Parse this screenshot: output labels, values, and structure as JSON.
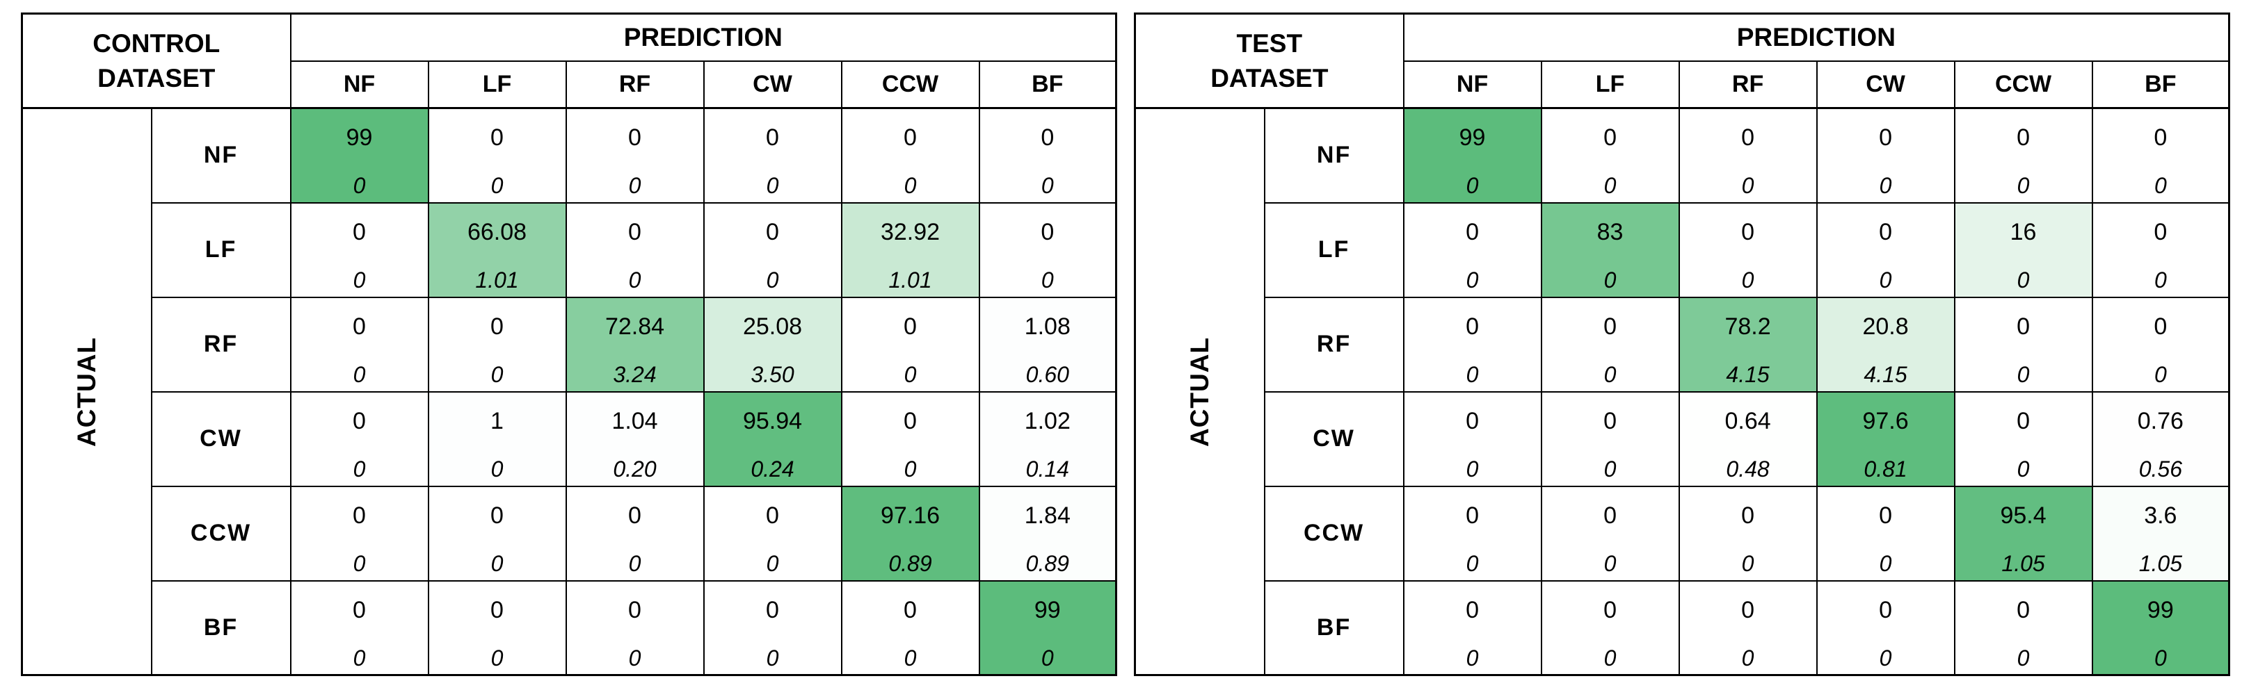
{
  "page": {
    "background": "#FFFFFF",
    "border_color": "#000000"
  },
  "heat": {
    "zero_color": "#FFFFFF",
    "max_color": "#5CBC7C",
    "max_value": 99
  },
  "tables": [
    {
      "dataset_label": "CONTROL DATASET",
      "prediction_label": "PREDICTION",
      "actual_label": "ACTUAL",
      "col_headers": [
        "NF",
        "LF",
        "RF",
        "CW",
        "CCW",
        "BF"
      ],
      "rows": [
        {
          "label": "NF",
          "cells": [
            [
              "99",
              "0"
            ],
            [
              "0",
              "0"
            ],
            [
              "0",
              "0"
            ],
            [
              "0",
              "0"
            ],
            [
              "0",
              "0"
            ],
            [
              "0",
              "0"
            ]
          ]
        },
        {
          "label": "LF",
          "cells": [
            [
              "0",
              "0"
            ],
            [
              "66.08",
              "1.01"
            ],
            [
              "0",
              "0"
            ],
            [
              "0",
              "0"
            ],
            [
              "32.92",
              "1.01"
            ],
            [
              "0",
              "0"
            ]
          ]
        },
        {
          "label": "RF",
          "cells": [
            [
              "0",
              "0"
            ],
            [
              "0",
              "0"
            ],
            [
              "72.84",
              "3.24"
            ],
            [
              "25.08",
              "3.50"
            ],
            [
              "0",
              "0"
            ],
            [
              "1.08",
              "0.60"
            ]
          ]
        },
        {
          "label": "CW",
          "cells": [
            [
              "0",
              "0"
            ],
            [
              "1",
              "0"
            ],
            [
              "1.04",
              "0.20"
            ],
            [
              "95.94",
              "0.24"
            ],
            [
              "0",
              "0"
            ],
            [
              "1.02",
              "0.14"
            ]
          ]
        },
        {
          "label": "CCW",
          "cells": [
            [
              "0",
              "0"
            ],
            [
              "0",
              "0"
            ],
            [
              "0",
              "0"
            ],
            [
              "0",
              "0"
            ],
            [
              "97.16",
              "0.89"
            ],
            [
              "1.84",
              "0.89"
            ]
          ]
        },
        {
          "label": "BF",
          "cells": [
            [
              "0",
              "0"
            ],
            [
              "0",
              "0"
            ],
            [
              "0",
              "0"
            ],
            [
              "0",
              "0"
            ],
            [
              "0",
              "0"
            ],
            [
              "99",
              "0"
            ]
          ]
        }
      ]
    },
    {
      "dataset_label": "TEST DATASET",
      "prediction_label": "PREDICTION",
      "actual_label": "ACTUAL",
      "col_headers": [
        "NF",
        "LF",
        "RF",
        "CW",
        "CCW",
        "BF"
      ],
      "rows": [
        {
          "label": "NF",
          "cells": [
            [
              "99",
              "0"
            ],
            [
              "0",
              "0"
            ],
            [
              "0",
              "0"
            ],
            [
              "0",
              "0"
            ],
            [
              "0",
              "0"
            ],
            [
              "0",
              "0"
            ]
          ]
        },
        {
          "label": "LF",
          "cells": [
            [
              "0",
              "0"
            ],
            [
              "83",
              "0"
            ],
            [
              "0",
              "0"
            ],
            [
              "0",
              "0"
            ],
            [
              "16",
              "0"
            ],
            [
              "0",
              "0"
            ]
          ]
        },
        {
          "label": "RF",
          "cells": [
            [
              "0",
              "0"
            ],
            [
              "0",
              "0"
            ],
            [
              "78.2",
              "4.15"
            ],
            [
              "20.8",
              "4.15"
            ],
            [
              "0",
              "0"
            ],
            [
              "0",
              "0"
            ]
          ]
        },
        {
          "label": "CW",
          "cells": [
            [
              "0",
              "0"
            ],
            [
              "0",
              "0"
            ],
            [
              "0.64",
              "0.48"
            ],
            [
              "97.6",
              "0.81"
            ],
            [
              "0",
              "0"
            ],
            [
              "0.76",
              "0.56"
            ]
          ]
        },
        {
          "label": "CCW",
          "cells": [
            [
              "0",
              "0"
            ],
            [
              "0",
              "0"
            ],
            [
              "0",
              "0"
            ],
            [
              "0",
              "0"
            ],
            [
              "95.4",
              "1.05"
            ],
            [
              "3.6",
              "1.05"
            ]
          ]
        },
        {
          "label": "BF",
          "cells": [
            [
              "0",
              "0"
            ],
            [
              "0",
              "0"
            ],
            [
              "0",
              "0"
            ],
            [
              "0",
              "0"
            ],
            [
              "0",
              "0"
            ],
            [
              "99",
              "0"
            ]
          ]
        }
      ]
    }
  ],
  "chart_data": [
    {
      "type": "heatmap",
      "title": "CONTROL DATASET",
      "xlabel": "PREDICTION",
      "ylabel": "ACTUAL",
      "x_categories": [
        "NF",
        "LF",
        "RF",
        "CW",
        "CCW",
        "BF"
      ],
      "y_categories": [
        "NF",
        "LF",
        "RF",
        "CW",
        "CCW",
        "BF"
      ],
      "cell_value_format": "mean (top), std (bottom, italic)",
      "mean": [
        [
          99,
          0,
          0,
          0,
          0,
          0
        ],
        [
          0,
          66.08,
          0,
          0,
          32.92,
          0
        ],
        [
          0,
          0,
          72.84,
          25.08,
          0,
          1.08
        ],
        [
          0,
          1,
          1.04,
          95.94,
          0,
          1.02
        ],
        [
          0,
          0,
          0,
          0,
          97.16,
          1.84
        ],
        [
          0,
          0,
          0,
          0,
          0,
          99
        ]
      ],
      "std": [
        [
          0,
          0,
          0,
          0,
          0,
          0
        ],
        [
          0,
          1.01,
          0,
          0,
          1.01,
          0
        ],
        [
          0,
          0,
          3.24,
          3.5,
          0,
          0.6
        ],
        [
          0,
          0,
          0.2,
          0.24,
          0,
          0.14
        ],
        [
          0,
          0,
          0,
          0,
          0.89,
          0.89
        ],
        [
          0,
          0,
          0,
          0,
          0,
          0
        ]
      ],
      "color_scale": {
        "min_value_color": "#FFFFFF",
        "max_value_color": "#5CBC7C",
        "range": [
          0,
          99
        ]
      }
    },
    {
      "type": "heatmap",
      "title": "TEST DATASET",
      "xlabel": "PREDICTION",
      "ylabel": "ACTUAL",
      "x_categories": [
        "NF",
        "LF",
        "RF",
        "CW",
        "CCW",
        "BF"
      ],
      "y_categories": [
        "NF",
        "LF",
        "RF",
        "CW",
        "CCW",
        "BF"
      ],
      "cell_value_format": "mean (top), std (bottom, italic)",
      "mean": [
        [
          99,
          0,
          0,
          0,
          0,
          0
        ],
        [
          0,
          83,
          0,
          0,
          16,
          0
        ],
        [
          0,
          0,
          78.2,
          20.8,
          0,
          0
        ],
        [
          0,
          0,
          0.64,
          97.6,
          0,
          0.76
        ],
        [
          0,
          0,
          0,
          0,
          95.4,
          3.6
        ],
        [
          0,
          0,
          0,
          0,
          0,
          99
        ]
      ],
      "std": [
        [
          0,
          0,
          0,
          0,
          0,
          0
        ],
        [
          0,
          0,
          0,
          0,
          0,
          0
        ],
        [
          0,
          0,
          4.15,
          4.15,
          0,
          0
        ],
        [
          0,
          0,
          0.48,
          0.81,
          0,
          0.56
        ],
        [
          0,
          0,
          0,
          0,
          1.05,
          1.05
        ],
        [
          0,
          0,
          0,
          0,
          0,
          0
        ]
      ],
      "color_scale": {
        "min_value_color": "#FFFFFF",
        "max_value_color": "#5CBC7C",
        "range": [
          0,
          99
        ]
      }
    }
  ]
}
